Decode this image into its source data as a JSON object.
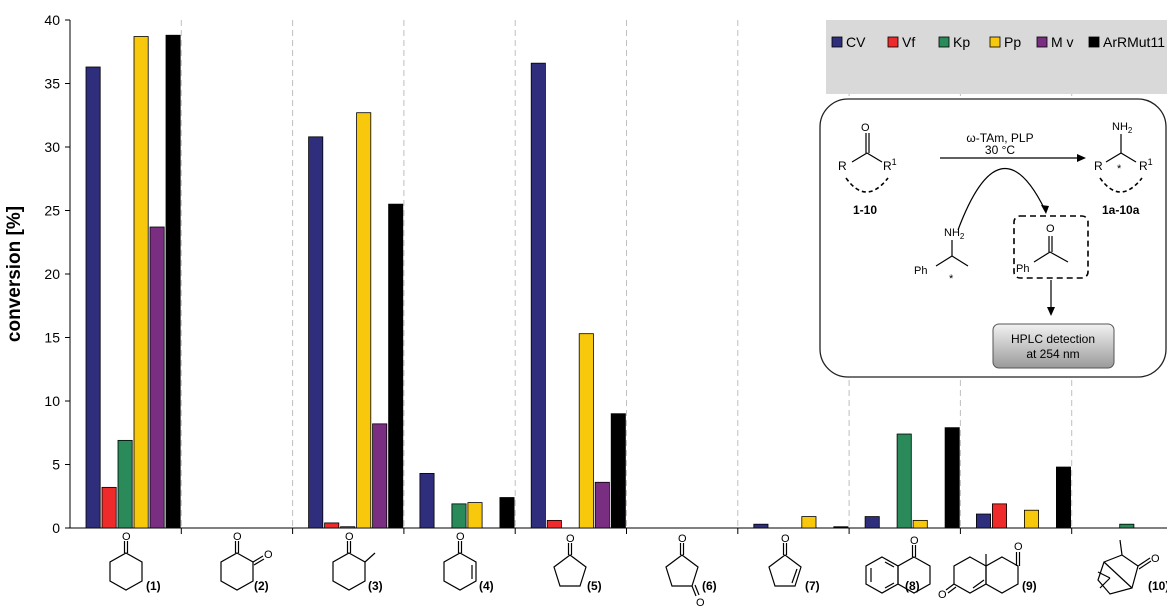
{
  "chart_data": {
    "type": "bar",
    "ylabel": "conversion [%]",
    "ylim": [
      0,
      40
    ],
    "yticks": [
      0,
      5,
      10,
      15,
      20,
      25,
      30,
      35,
      40
    ],
    "categories": [
      "(1)",
      "(2)",
      "(3)",
      "(4)",
      "(5)",
      "(6)",
      "(7)",
      "(8)",
      "(9)",
      "(10)"
    ],
    "series": [
      {
        "name": "CV",
        "color": "#2e2e7c",
        "values": [
          36.3,
          0,
          30.8,
          4.3,
          36.6,
          0,
          0.3,
          0.9,
          1.1,
          0
        ]
      },
      {
        "name": "Vf",
        "color": "#ee2a2a",
        "values": [
          3.2,
          0,
          0.4,
          0,
          0.6,
          0,
          0,
          0,
          1.9,
          0
        ]
      },
      {
        "name": "Kp",
        "color": "#2a8a5a",
        "values": [
          6.9,
          0,
          0.1,
          1.9,
          0,
          0,
          0,
          7.4,
          0,
          0.3
        ]
      },
      {
        "name": "Pp",
        "color": "#f7c80c",
        "values": [
          38.7,
          0,
          32.7,
          2.0,
          15.3,
          0,
          0.9,
          0.6,
          1.4,
          0
        ]
      },
      {
        "name": "Mv",
        "color": "#7a2e82",
        "values": [
          23.7,
          0,
          8.2,
          0,
          3.6,
          0,
          0,
          0,
          0,
          0
        ]
      },
      {
        "name": "ArRMut11",
        "color": "#000000",
        "values": [
          38.8,
          0,
          25.5,
          2.4,
          9.0,
          0,
          0.1,
          7.9,
          4.8,
          0.1
        ]
      }
    ],
    "legend": {
      "position": "top-right",
      "labels": [
        "CV",
        "Vf",
        "Kp",
        "Pp",
        "M v",
        "ArRMut11"
      ]
    }
  },
  "scheme": {
    "reagents_top": "ω-TAm, PLP",
    "reagents_bottom": "30 °C",
    "substrate_label": "1-10",
    "product_label": "1a-10a",
    "r_label": "R",
    "r1_label": "R",
    "r1_sup": "1",
    "oxygen": "O",
    "nh2": "NH",
    "nh2_sub": "2",
    "ph": "Ph",
    "star": "*",
    "detection_line1": "HPLC detection",
    "detection_line2": "at 254 nm"
  },
  "structure_o": "O"
}
